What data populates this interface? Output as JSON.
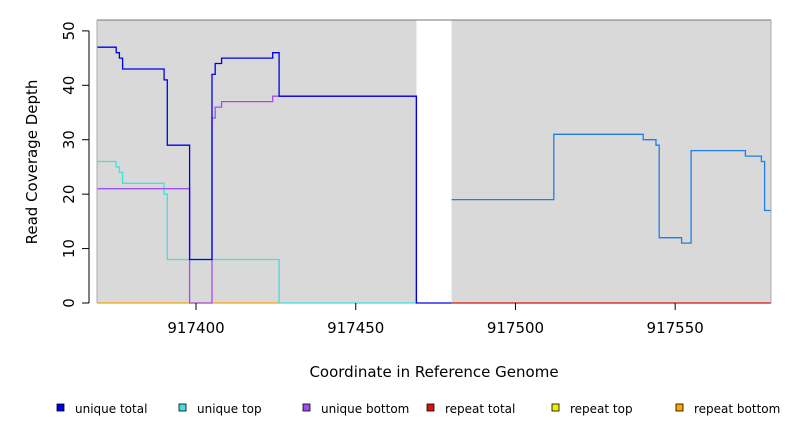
{
  "chart_data": {
    "type": "line",
    "step": true,
    "xlabel": "Coordinate in Reference Genome",
    "ylabel": "Read Coverage Depth",
    "xlim": [
      917369,
      917580
    ],
    "ylim": [
      0,
      52
    ],
    "x_ticks": [
      917400,
      917450,
      917500,
      917550
    ],
    "y_ticks": [
      0,
      10,
      20,
      30,
      40,
      50
    ],
    "gap": {
      "from": 917469,
      "to": 917480
    },
    "background_color": "#d9d9d9",
    "legend_placement": "bottom",
    "series": [
      {
        "name": "unique total",
        "color": "#0000ee",
        "points": [
          [
            917369,
            47
          ],
          [
            917375,
            46
          ],
          [
            917376,
            45
          ],
          [
            917377,
            43
          ],
          [
            917390,
            41
          ],
          [
            917391,
            29
          ],
          [
            917398,
            8
          ],
          [
            917405,
            42
          ],
          [
            917406,
            44
          ],
          [
            917408,
            45
          ],
          [
            917424,
            46
          ],
          [
            917426,
            38
          ],
          [
            917469,
            0
          ],
          [
            917480,
            0
          ]
        ]
      },
      {
        "name": "unique total",
        "color": "#1e7fe8",
        "points": [
          [
            917480,
            19
          ],
          [
            917512,
            31
          ],
          [
            917540,
            30
          ],
          [
            917544,
            29
          ],
          [
            917545,
            12
          ],
          [
            917552,
            11
          ],
          [
            917555,
            28
          ],
          [
            917572,
            27
          ],
          [
            917577,
            26
          ],
          [
            917578,
            17
          ],
          [
            917580,
            17
          ]
        ]
      },
      {
        "name": "unique top",
        "color": "#40e0e0",
        "points": [
          [
            917369,
            26
          ],
          [
            917375,
            25
          ],
          [
            917376,
            24
          ],
          [
            917377,
            22
          ],
          [
            917390,
            20
          ],
          [
            917391,
            8
          ],
          [
            917426,
            0
          ],
          [
            917469,
            0
          ]
        ]
      },
      {
        "name": "unique bottom",
        "color": "#a050f0",
        "points": [
          [
            917369,
            21
          ],
          [
            917398,
            0
          ],
          [
            917405,
            34
          ],
          [
            917406,
            36
          ],
          [
            917408,
            37
          ],
          [
            917424,
            38
          ],
          [
            917426,
            38
          ],
          [
            917469,
            0
          ]
        ]
      },
      {
        "name": "repeat total",
        "color": "#dd1111",
        "points": [
          [
            917480,
            0
          ],
          [
            917580,
            0
          ]
        ]
      },
      {
        "name": "repeat top",
        "color": "#eeee00",
        "points": []
      },
      {
        "name": "repeat bottom",
        "color": "#ffa500",
        "points": [
          [
            917369,
            0
          ],
          [
            917426,
            0
          ]
        ]
      }
    ],
    "legend": [
      {
        "label": "unique total",
        "color": "#0000ee"
      },
      {
        "label": "unique top",
        "color": "#40e0e0"
      },
      {
        "label": "unique bottom",
        "color": "#a050f0"
      },
      {
        "label": "repeat total",
        "color": "#dd1111"
      },
      {
        "label": "repeat top",
        "color": "#eeee00"
      },
      {
        "label": "repeat bottom",
        "color": "#ffa500"
      }
    ]
  }
}
